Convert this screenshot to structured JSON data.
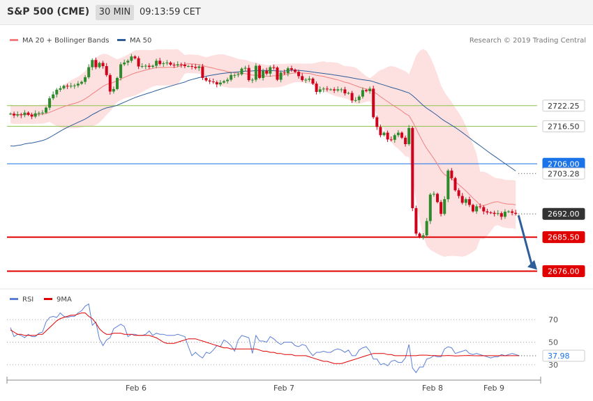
{
  "header": {
    "symbol": "S&P 500 (CME)",
    "timeframe": "30 MIN",
    "time": "09:13:59 CET"
  },
  "colors": {
    "up": "#2d8a2d",
    "down": "#d0021b",
    "ma20": "#f08080",
    "ma50": "#2e5d9a",
    "bollinger_fill": "#fde0e0",
    "support": "#e00000",
    "resistance": "#8bc34a",
    "pivot": "#1a73e8",
    "rsi": "#5b7fd6",
    "rsi_ma": "#e00000",
    "arrow": "#2e5d9a"
  },
  "chart_data": [
    {
      "type": "candlestick",
      "title": "S&P 500 (CME)",
      "legend": [
        {
          "label": "MA 20 + Bollinger Bands",
          "color": "#f08080"
        },
        {
          "label": "MA 50",
          "color": "#2e5d9a"
        }
      ],
      "legend_placement": "top-left",
      "credit": "Research © 2019 Trading Central",
      "ylim": [
        2672,
        2744
      ],
      "x_ticks": [
        "Feb 6",
        "Feb 7",
        "Feb 8",
        "Feb 9"
      ],
      "levels": [
        {
          "label": "2722.25",
          "value": 2722.25,
          "style": "green-line",
          "box": "outline"
        },
        {
          "label": "2716.50",
          "value": 2716.5,
          "style": "green-line",
          "box": "outline"
        },
        {
          "label": "2706.00",
          "value": 2706.0,
          "style": "blue-line",
          "box": "blue"
        },
        {
          "label": "2703.28",
          "value": 2703.28,
          "style": "dotted",
          "box": "outline"
        },
        {
          "label": "2692.00",
          "value": 2692.0,
          "style": "dotted",
          "box": "dark"
        },
        {
          "label": "2685.50",
          "value": 2685.5,
          "style": "red-line",
          "box": "red"
        },
        {
          "label": "2676.00",
          "value": 2676.0,
          "style": "red-line",
          "box": "red"
        }
      ],
      "candles_close": [
        2720.0,
        2719.5,
        2719.8,
        2719.6,
        2720.3,
        2719.7,
        2719.2,
        2720.1,
        2720.2,
        2720.3,
        2721.7,
        2724.3,
        2725.4,
        2726.7,
        2727.1,
        2727.8,
        2727.6,
        2727.8,
        2727.9,
        2728.4,
        2728.9,
        2730.2,
        2733.0,
        2735.0,
        2733.0,
        2734.2,
        2733.3,
        2730.8,
        2726.2,
        2726.9,
        2730.0,
        2733.8,
        2734.3,
        2734.8,
        2736.0,
        2735.5,
        2733.2,
        2733.3,
        2733.4,
        2733.1,
        2733.4,
        2734.8,
        2733.9,
        2734.1,
        2734.3,
        2733.7,
        2733.5,
        2733.8,
        2733.7,
        2733.3,
        2733.3,
        2733.1,
        2732.8,
        2733.2,
        2730.0,
        2729.3,
        2729.0,
        2728.8,
        2728.2,
        2728.7,
        2729.1,
        2729.5,
        2730.8,
        2730.8,
        2731.0,
        2732.6,
        2732.8,
        2729.4,
        2729.5,
        2733.4,
        2730.0,
        2732.0,
        2731.2,
        2733.0,
        2732.9,
        2729.5,
        2731.5,
        2731.3,
        2732.7,
        2732.3,
        2731.7,
        2730.5,
        2729.4,
        2729.5,
        2729.8,
        2728.4,
        2726.1,
        2726.8,
        2727.0,
        2726.8,
        2726.8,
        2726.5,
        2726.8,
        2726.8,
        2725.7,
        2725.8,
        2723.7,
        2723.8,
        2724.8,
        2726.6,
        2726.3,
        2727.0,
        2719.0,
        2716.3,
        2714.0,
        2714.7,
        2712.8,
        2712.7,
        2714.0,
        2714.7,
        2713.3,
        2711.5,
        2716.0,
        2693.6,
        2686.5,
        2685.5,
        2686.0,
        2690.0,
        2697.4,
        2697.6,
        2695.3,
        2692.0,
        2696.1,
        2704.1,
        2702.0,
        2698.6,
        2697.0,
        2695.1,
        2696.1,
        2694.5,
        2692.7,
        2694.1,
        2693.9,
        2692.7,
        2692.4,
        2692.3,
        2692.0,
        2692.2,
        2691.2,
        2692.6,
        2692.7,
        2692.3,
        2692.0
      ]
    },
    {
      "type": "line",
      "title": "",
      "legend": [
        {
          "label": "RSI",
          "color": "#5b7fd6"
        },
        {
          "label": "9MA",
          "color": "#e00000"
        }
      ],
      "ylim": [
        20,
        85
      ],
      "y_ticks": [
        70,
        50,
        30
      ],
      "current_label": "37.98",
      "series": [
        {
          "name": "RSI",
          "values": [
            63,
            55,
            57,
            56,
            54,
            57,
            55,
            55,
            58,
            59,
            68,
            72,
            73,
            72,
            76,
            73,
            72,
            73,
            73,
            76,
            78,
            82,
            84,
            65,
            68,
            53,
            47,
            52,
            54,
            62,
            64,
            66,
            64,
            55,
            57,
            57,
            56,
            56,
            57,
            60,
            56,
            58,
            57,
            57,
            56,
            56,
            56,
            57,
            56,
            55,
            46,
            38,
            41,
            38,
            36,
            41,
            40,
            43,
            47,
            46,
            52,
            50,
            47,
            42,
            52,
            56,
            55,
            54,
            40,
            56,
            51,
            51,
            50,
            55,
            53,
            50,
            48,
            50,
            50,
            50,
            47,
            46,
            48,
            47,
            42,
            38,
            41,
            41,
            42,
            41,
            41,
            43,
            44,
            43,
            41,
            43,
            38,
            38,
            43,
            45,
            46,
            42,
            35,
            35,
            30,
            31,
            29,
            33,
            34,
            32,
            32,
            36,
            48,
            27,
            23,
            28,
            28,
            35,
            36,
            38,
            37,
            37,
            44,
            46,
            45,
            40,
            41,
            42,
            43,
            40,
            39,
            40,
            39,
            38,
            37,
            36,
            37,
            37,
            39,
            38,
            39,
            40,
            39,
            37.98
          ]
        },
        {
          "name": "9MA",
          "values": [
            61,
            59,
            57,
            57,
            56,
            56,
            56,
            56,
            57,
            57,
            60,
            63,
            66,
            69,
            71,
            72,
            73,
            74,
            74,
            75,
            76,
            76,
            73,
            71,
            67,
            62,
            59,
            57,
            57,
            58,
            58,
            58,
            57,
            57,
            57,
            56,
            56,
            56,
            56,
            56,
            55,
            54,
            52,
            50,
            49,
            49,
            49,
            50,
            51,
            52,
            53,
            53,
            53,
            52,
            51,
            50,
            49,
            48,
            47,
            46,
            45,
            45,
            44,
            44,
            44,
            44,
            44,
            44,
            44,
            44,
            43,
            42,
            42,
            41,
            41,
            40,
            40,
            39,
            39,
            39,
            38,
            38,
            38,
            38,
            37,
            36,
            35,
            34,
            33,
            33,
            32,
            31,
            31,
            31,
            32,
            33,
            34,
            35,
            36,
            37,
            38,
            39,
            40,
            40,
            40,
            40,
            39,
            39,
            38,
            38,
            38,
            38,
            38,
            38,
            38,
            38.5,
            38.5,
            38.5,
            38.2,
            38.1,
            38,
            37.98,
            38,
            38.2,
            38,
            37.8,
            37.9,
            38,
            38.1,
            38.2,
            38,
            37.98,
            38,
            37.98,
            38,
            38,
            38,
            38,
            38,
            37.98,
            38,
            38,
            38,
            38
          ]
        }
      ]
    }
  ]
}
